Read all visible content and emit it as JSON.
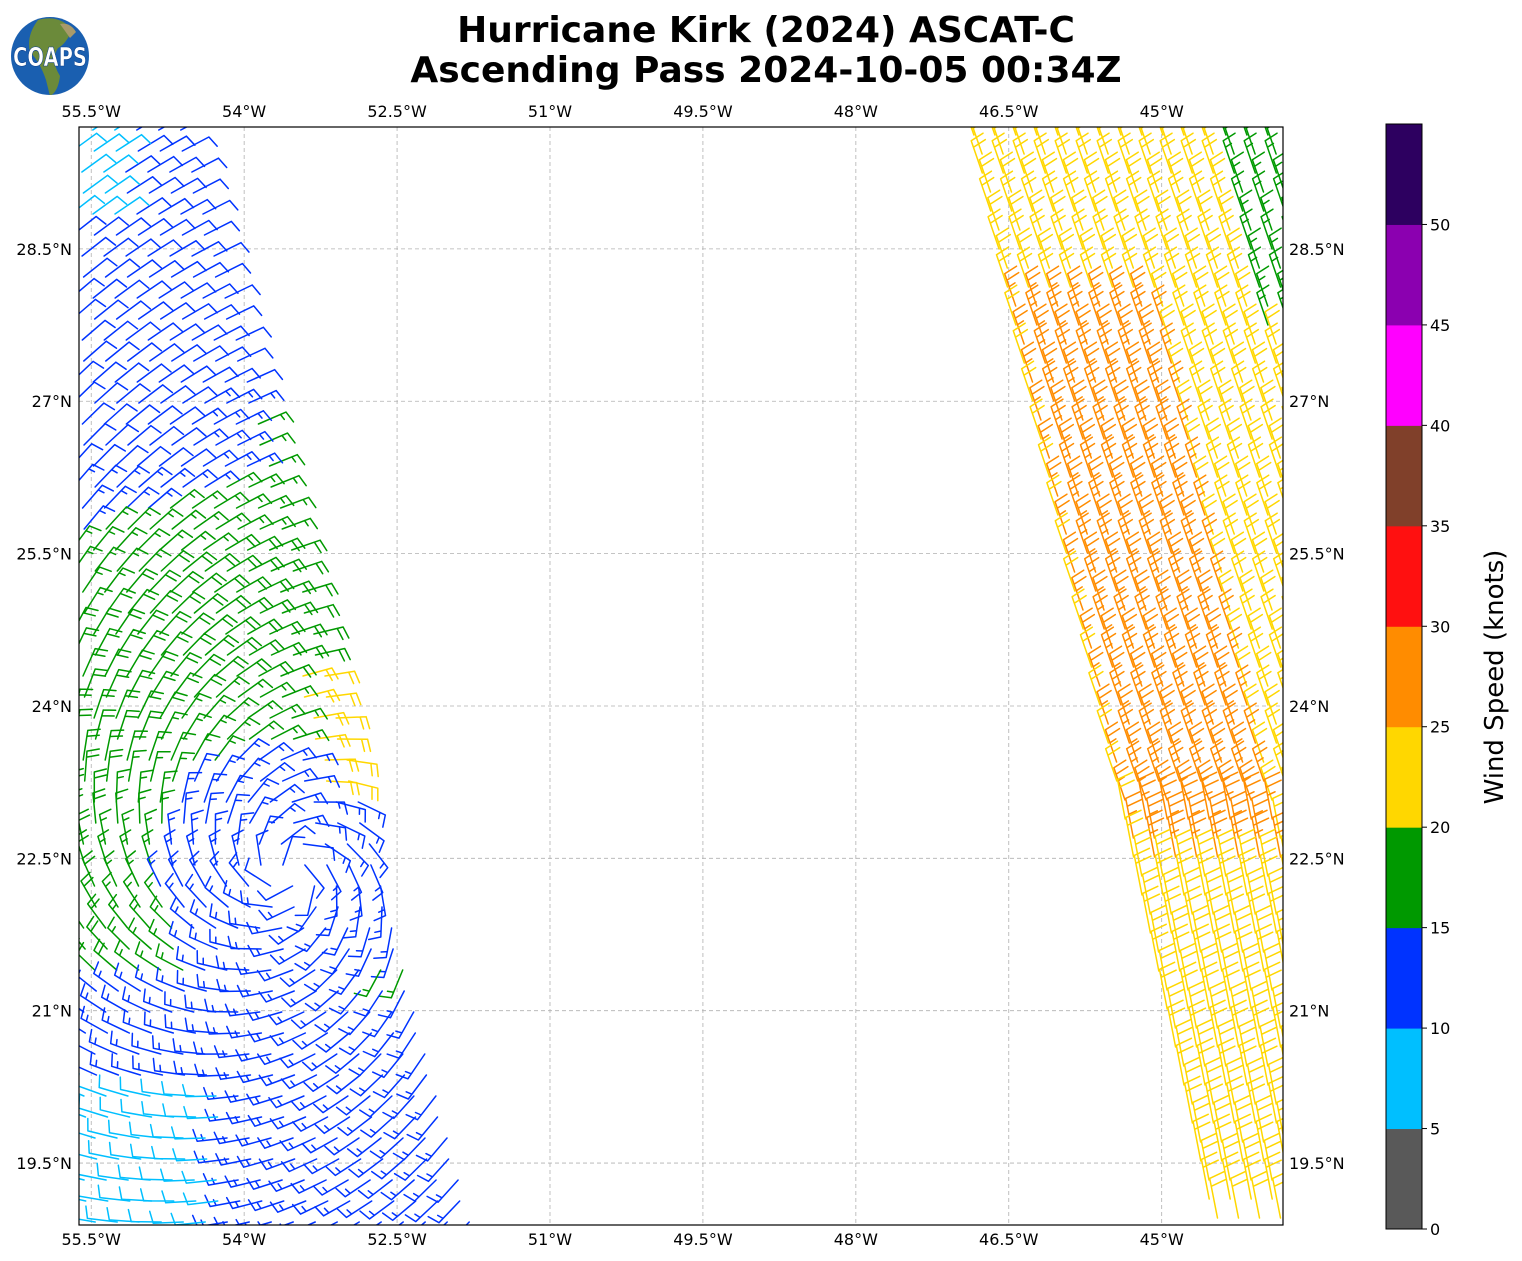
{
  "header": {
    "title_line1": "Hurricane Kirk (2024) ASCAT-C",
    "title_line2": "Ascending Pass 2024-10-05 00:34Z",
    "logo_text": "COAPS"
  },
  "map_data": {
    "type": "wind-barbs",
    "lon_range": [
      -55.62,
      -43.81
    ],
    "lat_range": [
      18.89,
      29.7
    ],
    "lon_ticks": [
      {
        "value": -55.5,
        "label": "55.5°W"
      },
      {
        "value": -54.0,
        "label": "54°W"
      },
      {
        "value": -52.5,
        "label": "52.5°W"
      },
      {
        "value": -51.0,
        "label": "51°W"
      },
      {
        "value": -49.5,
        "label": "49.5°W"
      },
      {
        "value": -48.0,
        "label": "48°W"
      },
      {
        "value": -46.5,
        "label": "46.5°W"
      },
      {
        "value": -45.0,
        "label": "45°W"
      }
    ],
    "lat_ticks": [
      {
        "value": 19.5,
        "label": "19.5°N"
      },
      {
        "value": 21.0,
        "label": "21°N"
      },
      {
        "value": 22.5,
        "label": "22.5°N"
      },
      {
        "value": 24.0,
        "label": "24°N"
      },
      {
        "value": 25.5,
        "label": "25.5°N"
      },
      {
        "value": 27.0,
        "label": "27°N"
      },
      {
        "value": 28.5,
        "label": "28.5°N"
      }
    ],
    "grid": true,
    "circulation_center": {
      "lon": -53.55,
      "lat": 22.38
    },
    "speed_units": "knots"
  },
  "colorbar": {
    "label": "Wind Speed (knots)",
    "bounds": [
      0,
      5,
      10,
      15,
      20,
      25,
      30,
      35,
      40,
      45,
      50,
      55
    ],
    "tick_labels": [
      "0",
      "5",
      "10",
      "15",
      "20",
      "25",
      "30",
      "35",
      "40",
      "45",
      "50"
    ],
    "colors": [
      "#595959",
      "#00bfff",
      "#0033ff",
      "#009900",
      "#ffd700",
      "#ff8c00",
      "#ff1010",
      "#80402a",
      "#ff00ff",
      "#8b00b0",
      "#2d0060"
    ]
  }
}
